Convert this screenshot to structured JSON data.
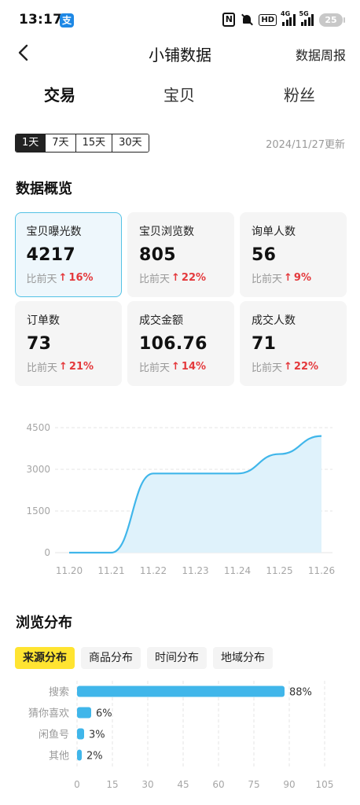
{
  "status_bar": {
    "time": "13:17",
    "app_badge": "支",
    "nfc": "N",
    "hd": "HD",
    "net1": "4G",
    "net2": "5G",
    "battery": "25"
  },
  "header": {
    "title": "小铺数据",
    "right_link": "数据周报"
  },
  "main_tabs": [
    {
      "label": "交易",
      "active": true
    },
    {
      "label": "宝贝",
      "active": false
    },
    {
      "label": "粉丝",
      "active": false
    }
  ],
  "range": {
    "options": [
      "1天",
      "7天",
      "15天",
      "30天"
    ],
    "selected": "1天",
    "updated_at": "2024/11/27更新"
  },
  "overview": {
    "title": "数据概览",
    "compare_label": "比前天",
    "cards": [
      {
        "label": "宝贝曝光数",
        "value": "4217",
        "change": "16%"
      },
      {
        "label": "宝贝浏览数",
        "value": "805",
        "change": "22%"
      },
      {
        "label": "询单人数",
        "value": "56",
        "change": "9%"
      },
      {
        "label": "订单数",
        "value": "73",
        "change": "21%"
      },
      {
        "label": "成交金额",
        "value": "106.76",
        "change": "14%"
      },
      {
        "label": "成交人数",
        "value": "71",
        "change": "22%"
      }
    ],
    "accent_color": "#53c2e5",
    "up_color": "#e4393c"
  },
  "chart_data": [
    {
      "type": "area",
      "x": [
        "11.20",
        "11.21",
        "11.22",
        "11.23",
        "11.24",
        "11.25",
        "11.26"
      ],
      "series": [
        {
          "values": [
            0,
            0,
            2850,
            2850,
            2850,
            3550,
            4200
          ]
        }
      ],
      "yticks": [
        "0",
        "1500",
        "3000",
        "4500"
      ],
      "ylim": [
        0,
        4500
      ],
      "grid": true,
      "color": "#40b6ea"
    },
    {
      "type": "bar",
      "orientation": "horizontal",
      "categories": [
        "搜索",
        "猜你喜欢",
        "闲鱼号",
        "其他"
      ],
      "values": [
        88,
        6,
        3,
        2
      ],
      "value_labels": [
        "88%",
        "6%",
        "3%",
        "2%"
      ],
      "xticks": [
        "0",
        "15",
        "30",
        "45",
        "60",
        "75",
        "90",
        "105"
      ],
      "xlim": [
        0,
        105
      ],
      "grid": true,
      "color": "#40b6ea"
    }
  ],
  "distribution": {
    "title": "浏览分布",
    "tabs": [
      {
        "label": "来源分布",
        "active": true
      },
      {
        "label": "商品分布",
        "active": false
      },
      {
        "label": "时间分布",
        "active": false
      },
      {
        "label": "地域分布",
        "active": false
      }
    ]
  }
}
